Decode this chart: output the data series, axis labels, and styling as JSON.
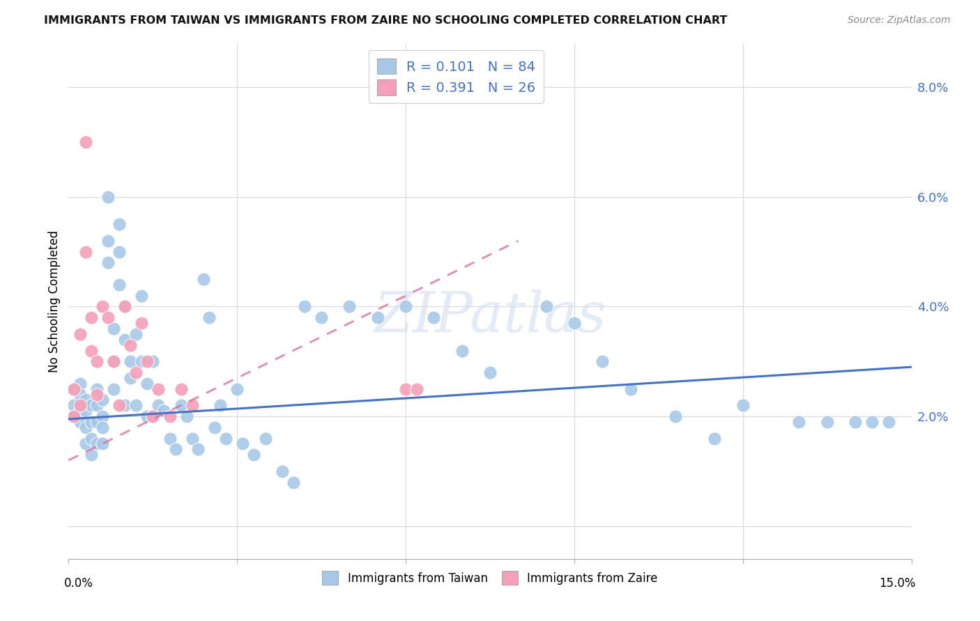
{
  "title": "IMMIGRANTS FROM TAIWAN VS IMMIGRANTS FROM ZAIRE NO SCHOOLING COMPLETED CORRELATION CHART",
  "source": "Source: ZipAtlas.com",
  "ylabel": "No Schooling Completed",
  "xlim": [
    0.0,
    0.15
  ],
  "ylim": [
    -0.006,
    0.088
  ],
  "yticks": [
    0.0,
    0.02,
    0.04,
    0.06,
    0.08
  ],
  "ytick_labels": [
    "",
    "2.0%",
    "4.0%",
    "6.0%",
    "8.0%"
  ],
  "taiwan_color": "#a8c8e8",
  "taiwan_line_color": "#4472c4",
  "zaire_color": "#f4a0b8",
  "zaire_line_color": "#d4709a",
  "taiwan_R": 0.101,
  "taiwan_N": 84,
  "zaire_R": 0.391,
  "zaire_N": 26,
  "background_color": "#ffffff",
  "grid_color": "#d8d8d8",
  "taiwan_scatter_x": [
    0.001,
    0.001,
    0.001,
    0.002,
    0.002,
    0.002,
    0.002,
    0.003,
    0.003,
    0.003,
    0.003,
    0.004,
    0.004,
    0.004,
    0.004,
    0.005,
    0.005,
    0.005,
    0.005,
    0.006,
    0.006,
    0.006,
    0.006,
    0.007,
    0.007,
    0.007,
    0.008,
    0.008,
    0.008,
    0.009,
    0.009,
    0.009,
    0.01,
    0.01,
    0.01,
    0.011,
    0.011,
    0.012,
    0.012,
    0.013,
    0.013,
    0.014,
    0.014,
    0.015,
    0.015,
    0.016,
    0.017,
    0.018,
    0.019,
    0.02,
    0.021,
    0.022,
    0.023,
    0.024,
    0.025,
    0.026,
    0.027,
    0.028,
    0.03,
    0.031,
    0.033,
    0.035,
    0.038,
    0.04,
    0.042,
    0.045,
    0.05,
    0.055,
    0.06,
    0.065,
    0.07,
    0.075,
    0.085,
    0.09,
    0.095,
    0.1,
    0.108,
    0.115,
    0.12,
    0.13,
    0.135,
    0.14,
    0.143,
    0.146
  ],
  "taiwan_scatter_y": [
    0.025,
    0.022,
    0.02,
    0.026,
    0.024,
    0.021,
    0.019,
    0.023,
    0.021,
    0.018,
    0.015,
    0.022,
    0.019,
    0.016,
    0.013,
    0.025,
    0.022,
    0.019,
    0.015,
    0.023,
    0.02,
    0.018,
    0.015,
    0.06,
    0.052,
    0.048,
    0.036,
    0.03,
    0.025,
    0.055,
    0.05,
    0.044,
    0.04,
    0.034,
    0.022,
    0.03,
    0.027,
    0.035,
    0.022,
    0.042,
    0.03,
    0.026,
    0.02,
    0.03,
    0.02,
    0.022,
    0.021,
    0.016,
    0.014,
    0.022,
    0.02,
    0.016,
    0.014,
    0.045,
    0.038,
    0.018,
    0.022,
    0.016,
    0.025,
    0.015,
    0.013,
    0.016,
    0.01,
    0.008,
    0.04,
    0.038,
    0.04,
    0.038,
    0.04,
    0.038,
    0.032,
    0.028,
    0.04,
    0.037,
    0.03,
    0.025,
    0.02,
    0.016,
    0.022,
    0.019,
    0.019,
    0.019,
    0.019,
    0.019
  ],
  "zaire_scatter_x": [
    0.001,
    0.001,
    0.002,
    0.002,
    0.003,
    0.003,
    0.004,
    0.004,
    0.005,
    0.005,
    0.006,
    0.007,
    0.008,
    0.009,
    0.01,
    0.011,
    0.012,
    0.013,
    0.014,
    0.015,
    0.016,
    0.018,
    0.02,
    0.022,
    0.06,
    0.062
  ],
  "zaire_scatter_y": [
    0.025,
    0.02,
    0.035,
    0.022,
    0.07,
    0.05,
    0.038,
    0.032,
    0.03,
    0.024,
    0.04,
    0.038,
    0.03,
    0.022,
    0.04,
    0.033,
    0.028,
    0.037,
    0.03,
    0.02,
    0.025,
    0.02,
    0.025,
    0.022,
    0.025,
    0.025
  ],
  "taiwan_line_x": [
    0.0,
    0.15
  ],
  "taiwan_line_y": [
    0.0195,
    0.029
  ],
  "zaire_line_x": [
    0.0,
    0.08
  ],
  "zaire_line_y": [
    0.012,
    0.052
  ]
}
